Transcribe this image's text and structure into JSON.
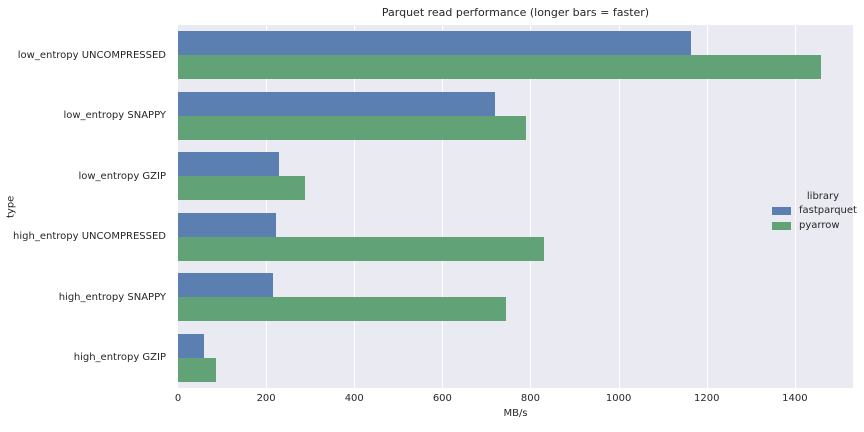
{
  "chart_data": {
    "type": "bar",
    "orientation": "horizontal",
    "title": "Parquet read performance (longer bars = faster)",
    "xlabel": "MB/s",
    "ylabel": "type",
    "categories": [
      "low_entropy UNCOMPRESSED",
      "low_entropy SNAPPY",
      "low_entropy GZIP",
      "high_entropy UNCOMPRESSED",
      "high_entropy SNAPPY",
      "high_entropy GZIP"
    ],
    "series": [
      {
        "name": "fastparquet",
        "color": "#5C7FB1",
        "values": [
          1165,
          720,
          230,
          222,
          215,
          60
        ]
      },
      {
        "name": "pyarrow",
        "color": "#61A276",
        "values": [
          1460,
          790,
          288,
          830,
          745,
          86
        ]
      }
    ],
    "xlim": [
      0,
      1532
    ],
    "xticks": [
      0,
      200,
      400,
      600,
      800,
      1000,
      1200,
      1400
    ],
    "legend": {
      "title": "library",
      "position": "center right"
    },
    "grid": true,
    "style": {
      "plot_background": "#EAEAF2",
      "grid_color": "#FFFFFF",
      "text_color": "#262626"
    }
  }
}
